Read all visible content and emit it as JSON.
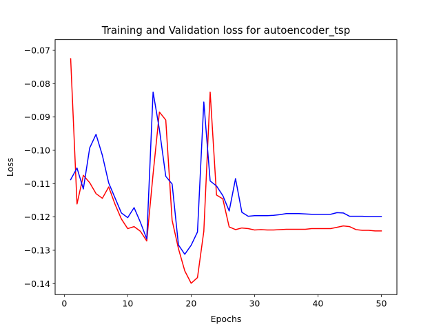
{
  "chart_data": {
    "type": "line",
    "title": "Training and Validation loss for autoencoder_tsp",
    "xlabel": "Epochs",
    "ylabel": "Loss",
    "xlim": [
      -1.45,
      52.45
    ],
    "ylim": [
      -0.1433,
      -0.0668
    ],
    "xticks": [
      0,
      10,
      20,
      30,
      40,
      50
    ],
    "yticks": [
      -0.14,
      -0.13,
      -0.12,
      -0.11,
      -0.1,
      -0.09,
      -0.08,
      -0.07
    ],
    "ytick_labels": [
      "−0.14",
      "−0.13",
      "−0.12",
      "−0.11",
      "−0.10",
      "−0.09",
      "−0.08",
      "−0.07"
    ],
    "grid": false,
    "legend": "none",
    "x": [
      1,
      2,
      3,
      4,
      5,
      6,
      7,
      8,
      9,
      10,
      11,
      12,
      13,
      14,
      15,
      16,
      17,
      18,
      19,
      20,
      21,
      22,
      23,
      24,
      25,
      26,
      27,
      28,
      29,
      30,
      31,
      32,
      33,
      34,
      35,
      36,
      37,
      38,
      39,
      40,
      41,
      42,
      43,
      44,
      45,
      46,
      47,
      48,
      49,
      50
    ],
    "series": [
      {
        "color": "#ff0000",
        "values": [
          -0.0725,
          -0.1161,
          -0.1075,
          -0.1097,
          -0.113,
          -0.1144,
          -0.111,
          -0.1162,
          -0.1206,
          -0.1235,
          -0.1229,
          -0.1243,
          -0.1272,
          -0.1071,
          -0.0885,
          -0.0909,
          -0.121,
          -0.1295,
          -0.1362,
          -0.1399,
          -0.1382,
          -0.1243,
          -0.0825,
          -0.1134,
          -0.1146,
          -0.123,
          -0.1238,
          -0.1233,
          -0.1235,
          -0.1239,
          -0.1238,
          -0.1239,
          -0.1239,
          -0.1238,
          -0.1237,
          -0.1237,
          -0.1237,
          -0.1237,
          -0.1235,
          -0.1235,
          -0.1235,
          -0.1235,
          -0.1231,
          -0.1227,
          -0.1229,
          -0.1238,
          -0.124,
          -0.124,
          -0.1242,
          -0.1242
        ]
      },
      {
        "color": "#0000ff",
        "values": [
          -0.1088,
          -0.1053,
          -0.1116,
          -0.0993,
          -0.0952,
          -0.1015,
          -0.1098,
          -0.1143,
          -0.1188,
          -0.1202,
          -0.1172,
          -0.1216,
          -0.1266,
          -0.0825,
          -0.0938,
          -0.1078,
          -0.1101,
          -0.1284,
          -0.1312,
          -0.1285,
          -0.1245,
          -0.0855,
          -0.1092,
          -0.1107,
          -0.1136,
          -0.1182,
          -0.1085,
          -0.1186,
          -0.1198,
          -0.1196,
          -0.1196,
          -0.1196,
          -0.1195,
          -0.1193,
          -0.119,
          -0.119,
          -0.119,
          -0.1191,
          -0.1192,
          -0.1192,
          -0.1192,
          -0.1192,
          -0.1187,
          -0.1188,
          -0.1198,
          -0.1198,
          -0.1198,
          -0.1199,
          -0.1199,
          -0.1199
        ]
      }
    ]
  }
}
